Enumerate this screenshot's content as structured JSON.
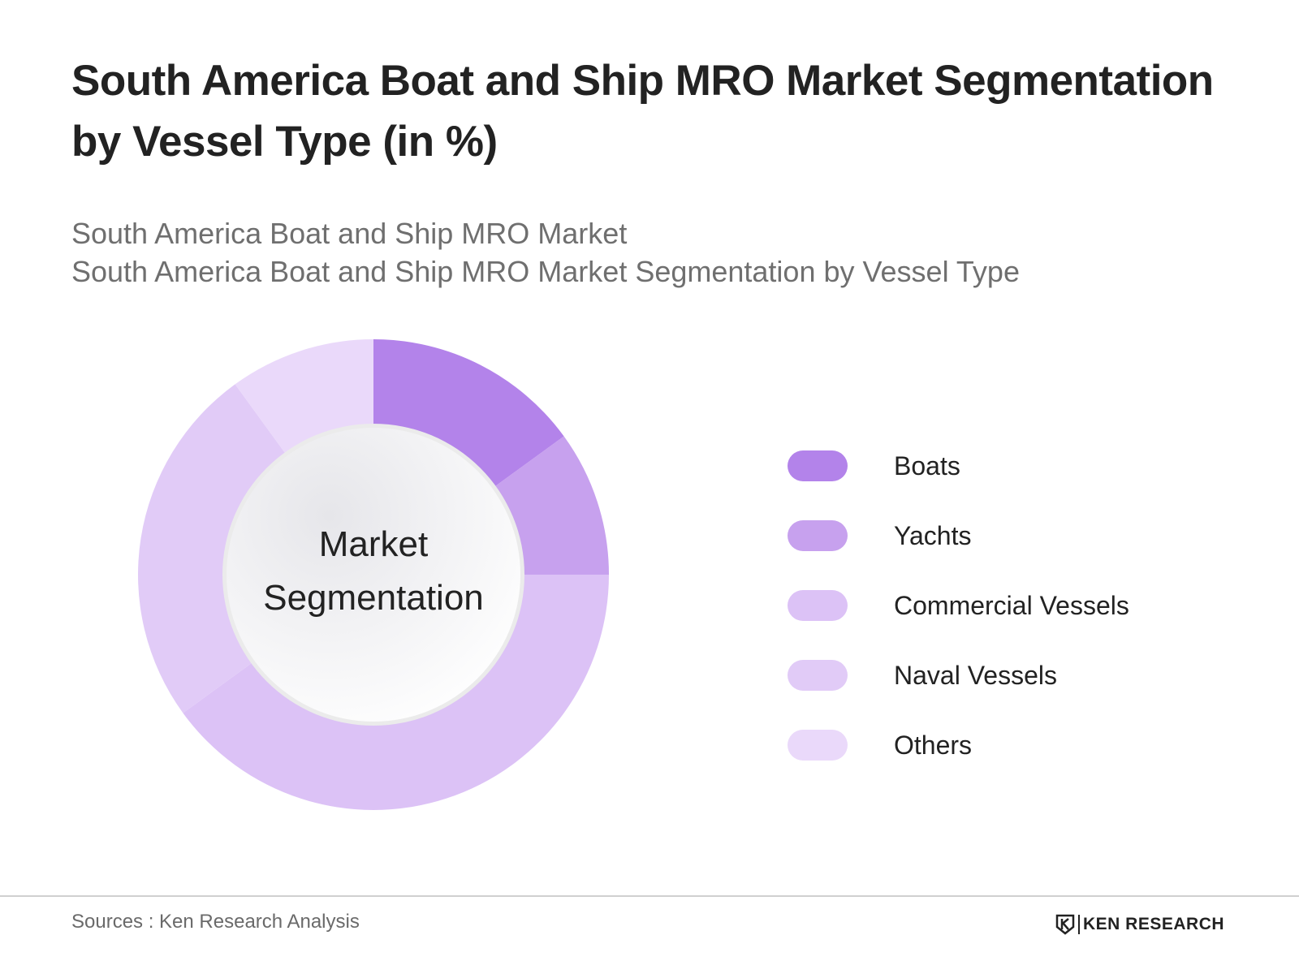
{
  "title": "South America Boat and Ship MRO Market Segmentation by Vessel Type (in %)",
  "subtitles": [
    "South America Boat and Ship MRO Market",
    "South America Boat and Ship MRO Market Segmentation by Vessel Type"
  ],
  "chart_data": {
    "type": "pie",
    "variant": "donut",
    "title": "South America Boat and Ship MRO Market Segmentation by Vessel Type (in %)",
    "center_label": [
      "Market",
      "Segmentation"
    ],
    "categories": [
      "Boats",
      "Yachts",
      "Commercial Vessels",
      "Naval Vessels",
      "Others"
    ],
    "values": [
      15,
      10,
      40,
      25,
      10
    ],
    "colors": [
      "#b383ea",
      "#c7a1ee",
      "#dcc2f6",
      "#e1cbf7",
      "#ead9fa"
    ],
    "unit": "%",
    "legend_position": "right"
  },
  "footer": {
    "source": "Sources : Ken Research Analysis",
    "brand": "KEN RESEARCH"
  }
}
